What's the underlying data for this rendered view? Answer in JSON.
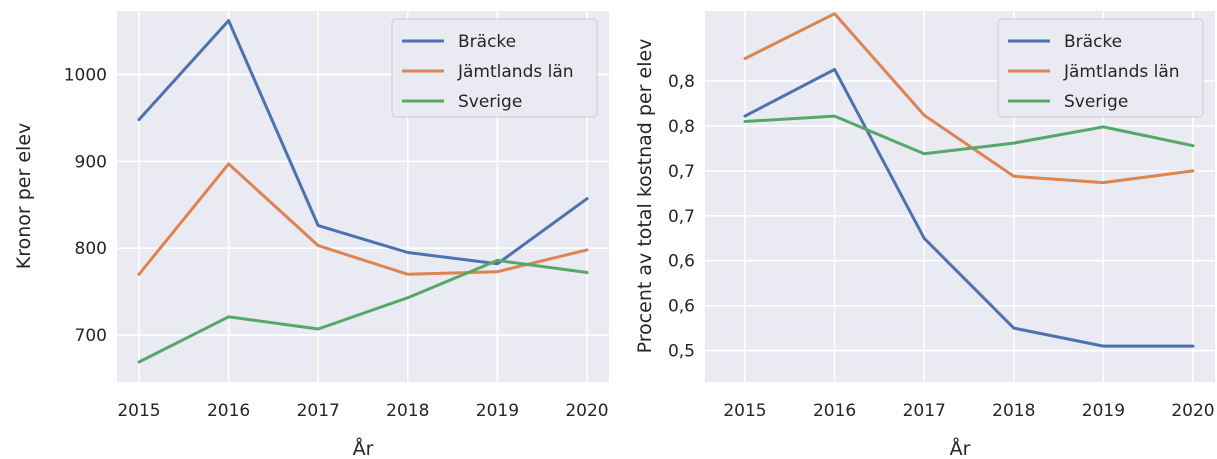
{
  "chart_data": [
    {
      "type": "line",
      "title": "",
      "xlabel": "År",
      "ylabel": "Kronor per elev",
      "categories": [
        "2015",
        "2016",
        "2017",
        "2018",
        "2019",
        "2020"
      ],
      "yticks": [
        "700",
        "800",
        "900",
        "1000"
      ],
      "ylim": [
        646,
        1073
      ],
      "grid": true,
      "legend_position": "top-right",
      "series": [
        {
          "name": "Bräcke",
          "color": "#4c72b0",
          "values": [
            948,
            1062,
            826,
            795,
            782,
            857
          ]
        },
        {
          "name": "Jämtlands län",
          "color": "#dd8452",
          "values": [
            770,
            897,
            803,
            770,
            773,
            798
          ]
        },
        {
          "name": "Sverige",
          "color": "#55a868",
          "values": [
            669,
            721,
            707,
            743,
            786,
            772
          ]
        }
      ]
    },
    {
      "type": "line",
      "title": "",
      "xlabel": "År",
      "ylabel": "Procent av total kostnad per elev",
      "categories": [
        "2015",
        "2016",
        "2017",
        "2018",
        "2019",
        "2020"
      ],
      "yticks": [
        "0,5",
        "0,6",
        "0,6",
        "0,7",
        "0,7",
        "0,8",
        "0,8"
      ],
      "ylim": [
        0.44,
        0.853
      ],
      "grid": true,
      "legend_position": "top-right",
      "series": [
        {
          "name": "Bräcke",
          "color": "#4c72b0",
          "values": [
            0.736,
            0.788,
            0.6,
            0.5,
            0.48,
            0.48
          ]
        },
        {
          "name": "Jämtlands län",
          "color": "#dd8452",
          "values": [
            0.8,
            0.85,
            0.737,
            0.669,
            0.662,
            0.675
          ]
        },
        {
          "name": "Sverige",
          "color": "#55a868",
          "values": [
            0.73,
            0.736,
            0.694,
            0.706,
            0.724,
            0.703
          ]
        }
      ]
    }
  ]
}
